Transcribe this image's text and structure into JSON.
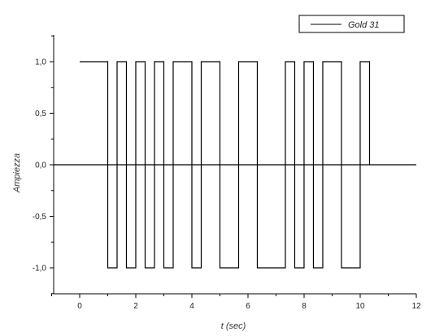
{
  "chart_data": {
    "type": "line",
    "title": "",
    "xlabel": "t (sec)",
    "ylabel": "Ampiezza",
    "xlim": [
      -1,
      12
    ],
    "ylim": [
      -1.25,
      1.25
    ],
    "xticks": [
      0,
      2,
      4,
      6,
      8,
      10,
      12
    ],
    "xtick_labels": [
      "0",
      "2",
      "4",
      "6",
      "8",
      "10",
      "12"
    ],
    "yticks": [
      -1.0,
      -0.5,
      0.0,
      0.5,
      1.0
    ],
    "ytick_labels": [
      "-1,0",
      "-0,5",
      "0,0",
      "0,5",
      "1,0"
    ],
    "zero_line": true,
    "grid": false,
    "legend_position": "top-right",
    "series": [
      {
        "name": "Gold 31",
        "color": "#000000",
        "bits": [
          1,
          1,
          1,
          -1,
          1,
          -1,
          1,
          -1,
          1,
          -1,
          1,
          1,
          -1,
          1,
          1,
          -1,
          -1,
          1,
          1,
          -1,
          -1,
          -1,
          1,
          -1,
          1,
          -1,
          1,
          1,
          -1,
          -1,
          1
        ],
        "t_start": 0,
        "bit_duration": 0.3333,
        "t_end": 10.333
      }
    ]
  }
}
